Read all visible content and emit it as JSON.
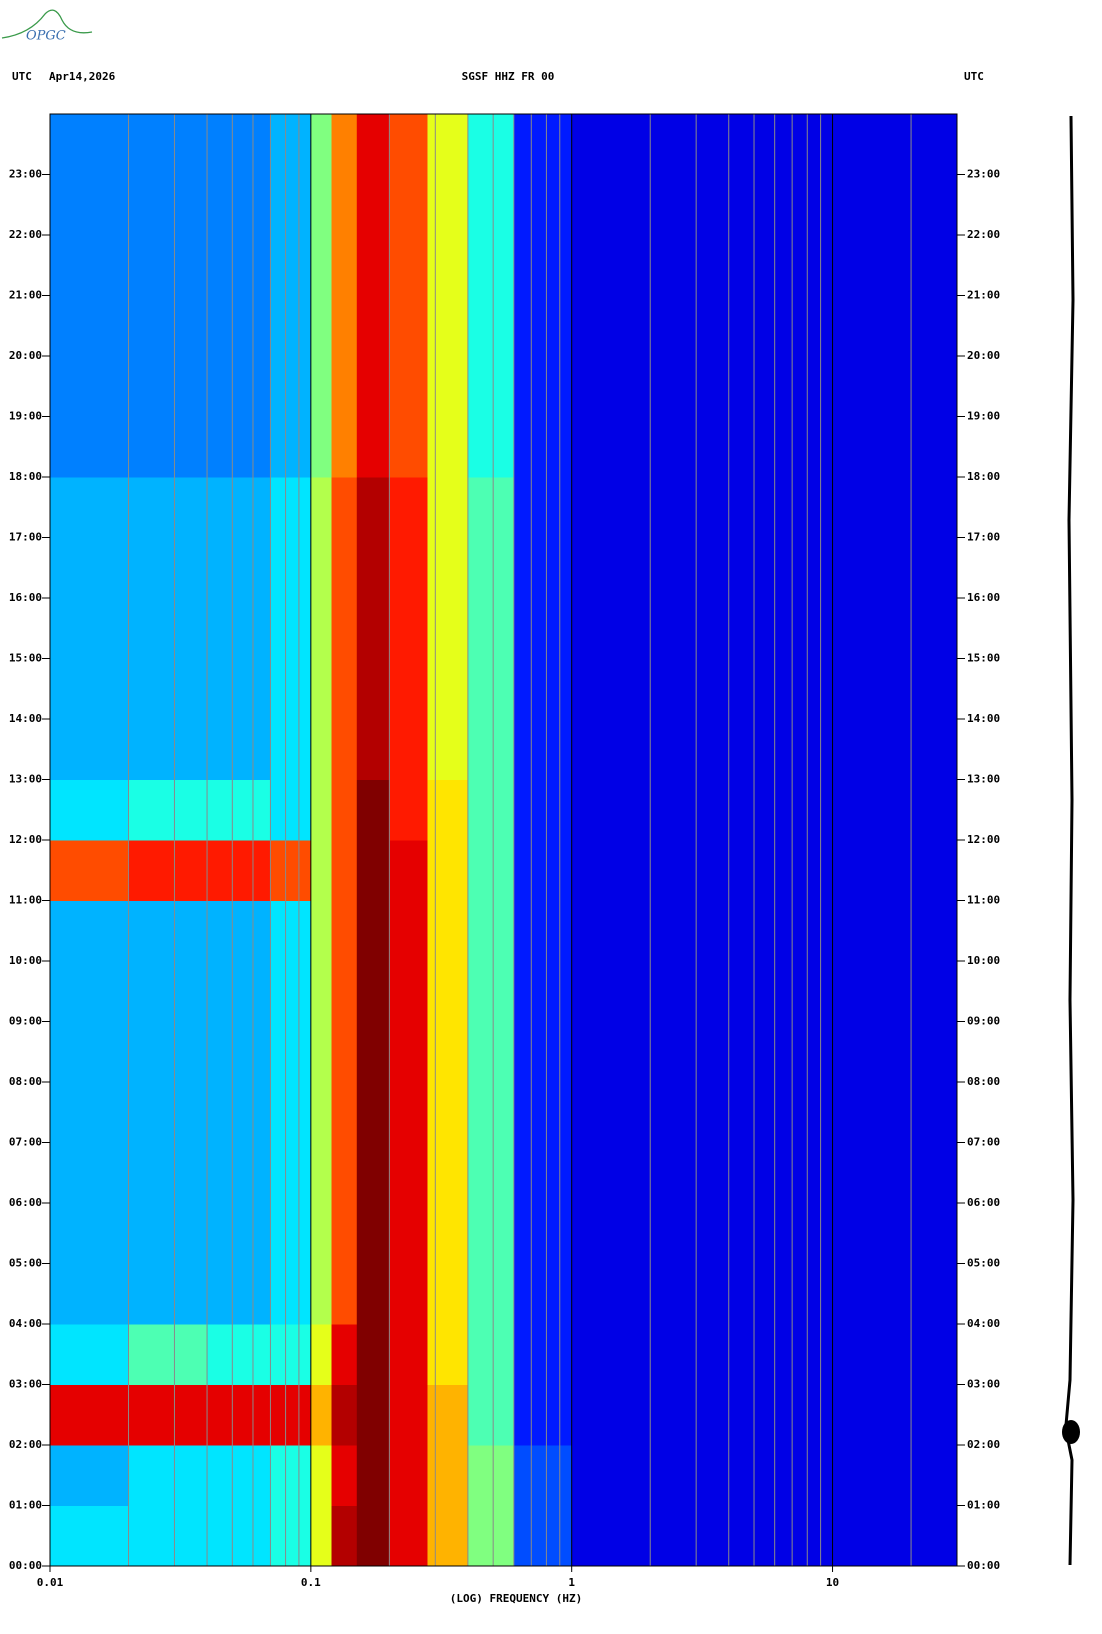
{
  "chart_data": {
    "type": "heatmap",
    "logo": "OPGC",
    "header_left": "UTC",
    "date": "Apr14,2026",
    "title": "SGSF HHZ FR 00",
    "header_right": "UTC",
    "xlabel": "(LOG) FREQUENCY (HZ)",
    "xscale": "log",
    "xlim": [
      0.01,
      30
    ],
    "xticks": [
      0.01,
      0.1,
      1,
      10
    ],
    "xminorticks": [
      0.02,
      0.03,
      0.04,
      0.05,
      0.06,
      0.07,
      0.08,
      0.09,
      0.2,
      0.3,
      0.4,
      0.5,
      0.6,
      0.7,
      0.8,
      0.9,
      2,
      3,
      4,
      5,
      6,
      7,
      8,
      9,
      20
    ],
    "ylim": [
      0,
      24
    ],
    "yticks": [
      {
        "value": 0,
        "label": "00:00"
      },
      {
        "value": 1,
        "label": "01:00"
      },
      {
        "value": 2,
        "label": "02:00"
      },
      {
        "value": 3,
        "label": "03:00"
      },
      {
        "value": 4,
        "label": "04:00"
      },
      {
        "value": 5,
        "label": "05:00"
      },
      {
        "value": 6,
        "label": "06:00"
      },
      {
        "value": 7,
        "label": "07:00"
      },
      {
        "value": 8,
        "label": "08:00"
      },
      {
        "value": 9,
        "label": "09:00"
      },
      {
        "value": 10,
        "label": "10:00"
      },
      {
        "value": 11,
        "label": "11:00"
      },
      {
        "value": 12,
        "label": "12:00"
      },
      {
        "value": 13,
        "label": "13:00"
      },
      {
        "value": 14,
        "label": "14:00"
      },
      {
        "value": 15,
        "label": "15:00"
      },
      {
        "value": 16,
        "label": "16:00"
      },
      {
        "value": 17,
        "label": "17:00"
      },
      {
        "value": 18,
        "label": "18:00"
      },
      {
        "value": 19,
        "label": "19:00"
      },
      {
        "value": 20,
        "label": "20:00"
      },
      {
        "value": 21,
        "label": "21:00"
      },
      {
        "value": 22,
        "label": "22:00"
      },
      {
        "value": 23,
        "label": "23:00"
      }
    ],
    "xbins": [
      0.01,
      0.02,
      0.04,
      0.07,
      0.1,
      0.12,
      0.15,
      0.2,
      0.28,
      0.4,
      0.6,
      1,
      30
    ],
    "ybins": [
      0,
      1,
      2,
      3,
      4,
      5,
      6,
      7,
      8,
      9,
      10,
      11,
      12,
      13,
      14,
      15,
      16,
      17,
      18,
      19,
      20,
      21,
      22,
      23,
      24
    ],
    "zlim": [
      0,
      10
    ],
    "z": [
      [
        3.5,
        3.5,
        3.5,
        4,
        6,
        9.5,
        10,
        9,
        7,
        5,
        2,
        1
      ],
      [
        3,
        3.5,
        3.5,
        4,
        6,
        9,
        10,
        9,
        7,
        5,
        2,
        1
      ],
      [
        9,
        9,
        9,
        9,
        7,
        9.5,
        10,
        9,
        7,
        4.5,
        1.5,
        1
      ],
      [
        3.5,
        4.5,
        4,
        4,
        6,
        9,
        10,
        9,
        6.5,
        4.5,
        1.5,
        1
      ],
      [
        3,
        3,
        3,
        3.5,
        5.5,
        8,
        10,
        9,
        6.5,
        4.5,
        1.5,
        1
      ],
      [
        3,
        3,
        3,
        3.5,
        5.5,
        8,
        10,
        9,
        6.5,
        4.5,
        1.5,
        1
      ],
      [
        3,
        3,
        3,
        3.5,
        5.5,
        8,
        10,
        9,
        6.5,
        4.5,
        1.5,
        1
      ],
      [
        3,
        3,
        3,
        3.5,
        5.5,
        8,
        10,
        9,
        6.5,
        4.5,
        1.5,
        1
      ],
      [
        3,
        3,
        3,
        3.5,
        5.5,
        8,
        10,
        9,
        6.5,
        4.5,
        1.5,
        1
      ],
      [
        3,
        3,
        3,
        3.5,
        5.5,
        8,
        10,
        9,
        6.5,
        4.5,
        1.5,
        1
      ],
      [
        3,
        3,
        3,
        3.5,
        5.5,
        8,
        10,
        9,
        6.5,
        4.5,
        1.5,
        1
      ],
      [
        8,
        8.5,
        8.5,
        8,
        5.5,
        8,
        10,
        9,
        6.5,
        4.5,
        1.5,
        1
      ],
      [
        3.5,
        4,
        4,
        3.5,
        5.5,
        8,
        10,
        8.5,
        6.5,
        4.5,
        1.5,
        1
      ],
      [
        3,
        3,
        3,
        3.5,
        5.5,
        8,
        9.5,
        8.5,
        6,
        4.5,
        1.5,
        1
      ],
      [
        3,
        3,
        3,
        3.5,
        5.5,
        8,
        9.5,
        8.5,
        6,
        4.5,
        1.5,
        1
      ],
      [
        3,
        3,
        3,
        3.5,
        5.5,
        8,
        9.5,
        8.5,
        6,
        4.5,
        1.5,
        1
      ],
      [
        3,
        3,
        3,
        3.5,
        5.5,
        8,
        9.5,
        8.5,
        6,
        4.5,
        1.5,
        1
      ],
      [
        3,
        3,
        3,
        3.5,
        5.5,
        8,
        9.5,
        8.5,
        6,
        4.5,
        1.5,
        1
      ],
      [
        2.5,
        2.5,
        2.5,
        3,
        5,
        7.5,
        9,
        8,
        6,
        4,
        1.5,
        1
      ],
      [
        2.5,
        2.5,
        2.5,
        3,
        5,
        7.5,
        9,
        8,
        6,
        4,
        1.5,
        1
      ],
      [
        2.5,
        2.5,
        2.5,
        3,
        5,
        7.5,
        9,
        8,
        6,
        4,
        1.5,
        1
      ],
      [
        2.5,
        2.5,
        2.5,
        3,
        5,
        7.5,
        9,
        8,
        6,
        4,
        1.5,
        1
      ],
      [
        2.5,
        2.5,
        2.5,
        3,
        5,
        7.5,
        9,
        8,
        6,
        4,
        1.5,
        1
      ],
      [
        2.5,
        2.5,
        2.5,
        3,
        5,
        7.5,
        9,
        8,
        6,
        4,
        1.5,
        1
      ]
    ]
  }
}
